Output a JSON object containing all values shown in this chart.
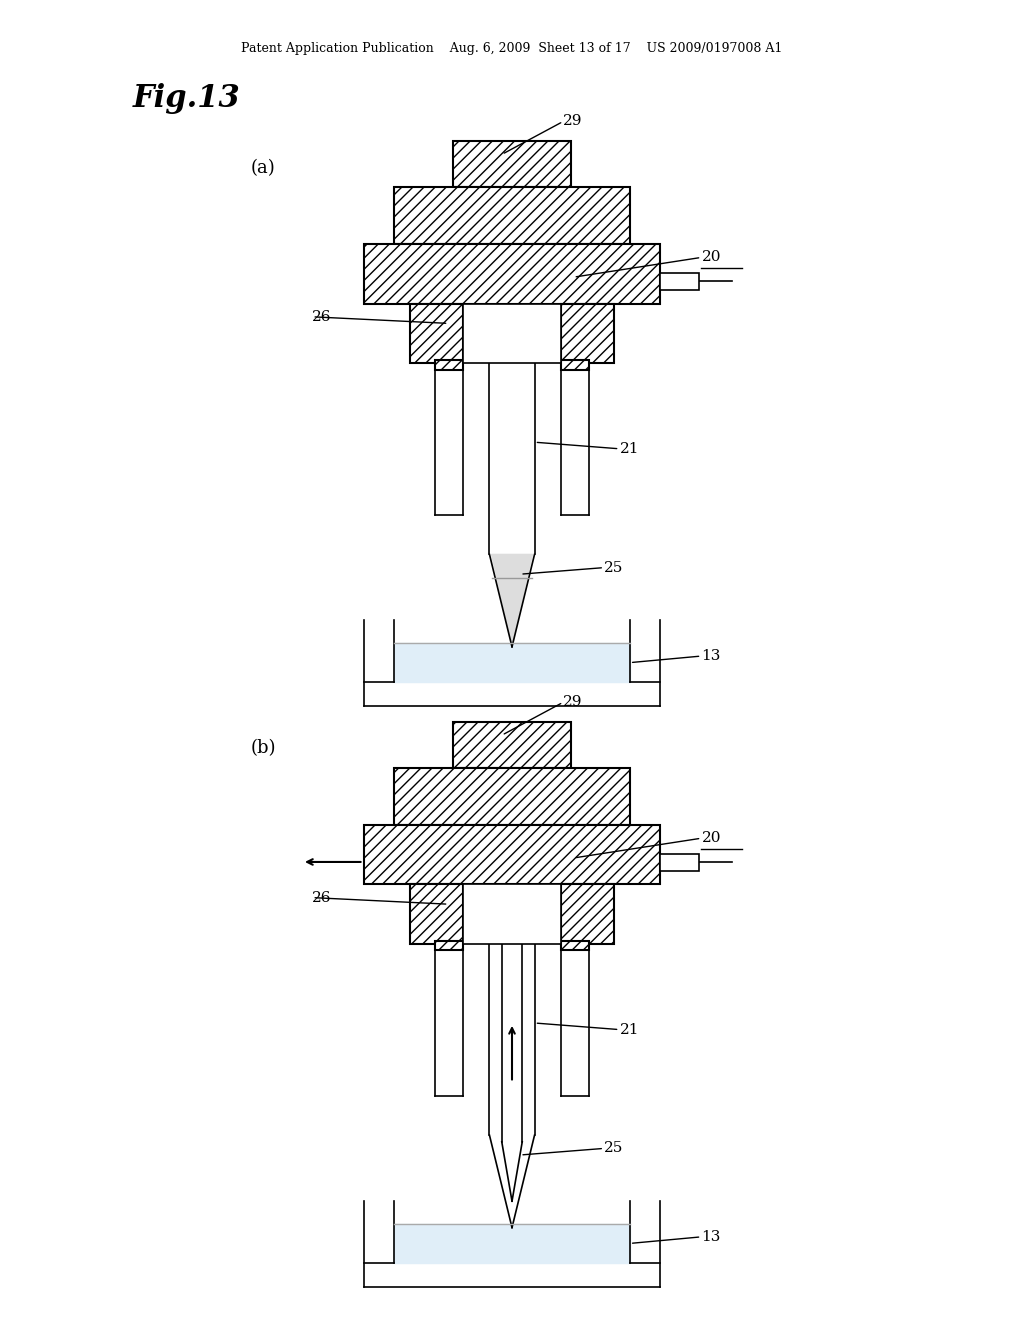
{
  "bg_color": "#ffffff",
  "line_color": "#000000",
  "header_text": "Patent Application Publication    Aug. 6, 2009  Sheet 13 of 17    US 2009/0197008 A1",
  "fig_title": "Fig.13",
  "label_a": "(a)",
  "label_b": "(b)"
}
